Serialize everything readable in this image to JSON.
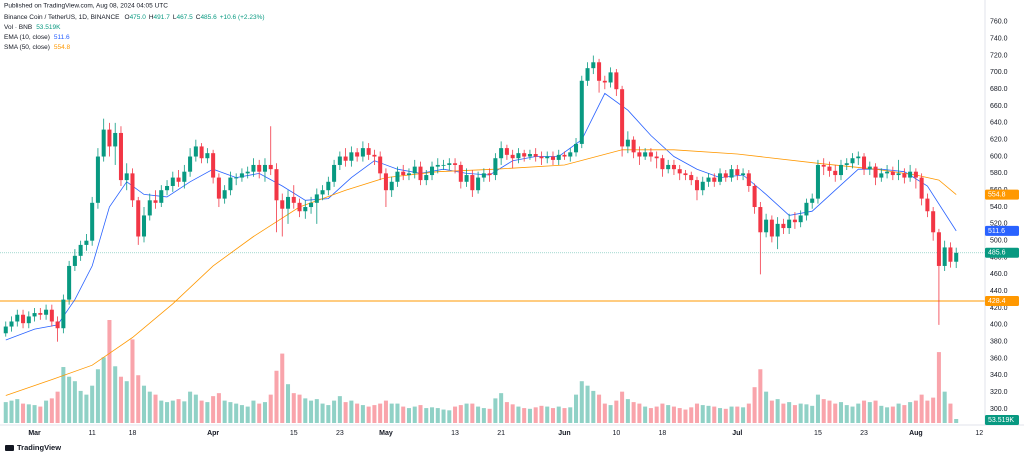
{
  "header": {
    "published": "Published on TradingView.com, Aug 08, 2024 04:05 UTC",
    "symbol": "Binance Coin / TetherUS, 1D, BINANCE",
    "ohlc": [
      {
        "key": "O",
        "value": "475.0"
      },
      {
        "key": "H",
        "value": "491.7"
      },
      {
        "key": "L",
        "value": "467.5"
      },
      {
        "key": "C",
        "value": "485.6"
      }
    ],
    "change": "+10.6 (+2.23%)",
    "volume_name": "Vol · BNB"
  },
  "footer": {
    "brand": "TradingView"
  },
  "chart_data": {
    "type": "candlestick",
    "up_color": "#089981",
    "down_color": "#f23645",
    "x": [
      "Feb 25",
      "Feb 26",
      "Feb 27",
      "Feb 28",
      "Feb 29",
      "Mar 1",
      "Mar 2",
      "Mar 3",
      "Mar 4",
      "Mar 5",
      "Mar 6",
      "Mar 7",
      "Mar 8",
      "Mar 9",
      "Mar 10",
      "Mar 11",
      "Mar 12",
      "Mar 13",
      "Mar 14",
      "Mar 15",
      "Mar 16",
      "Mar 17",
      "Mar 18",
      "Mar 19",
      "Mar 20",
      "Mar 21",
      "Mar 22",
      "Mar 23",
      "Mar 24",
      "Mar 25",
      "Mar 26",
      "Mar 27",
      "Mar 28",
      "Mar 29",
      "Mar 30",
      "Mar 31",
      "Apr 1",
      "Apr 2",
      "Apr 3",
      "Apr 4",
      "Apr 5",
      "Apr 6",
      "Apr 7",
      "Apr 8",
      "Apr 9",
      "Apr 10",
      "Apr 11",
      "Apr 12",
      "Apr 13",
      "Apr 14",
      "Apr 15",
      "Apr 16",
      "Apr 17",
      "Apr 18",
      "Apr 19",
      "Apr 20",
      "Apr 21",
      "Apr 22",
      "Apr 23",
      "Apr 24",
      "Apr 25",
      "Apr 26",
      "Apr 27",
      "Apr 28",
      "Apr 29",
      "Apr 30",
      "May 1",
      "May 2",
      "May 3",
      "May 4",
      "May 5",
      "May 6",
      "May 7",
      "May 8",
      "May 9",
      "May 10",
      "May 11",
      "May 12",
      "May 13",
      "May 14",
      "May 15",
      "May 16",
      "May 17",
      "May 18",
      "May 19",
      "May 20",
      "May 21",
      "May 22",
      "May 23",
      "May 24",
      "May 25",
      "May 26",
      "May 27",
      "May 28",
      "May 29",
      "May 30",
      "May 31",
      "Jun 1",
      "Jun 2",
      "Jun 3",
      "Jun 4",
      "Jun 5",
      "Jun 6",
      "Jun 7",
      "Jun 8",
      "Jun 9",
      "Jun 10",
      "Jun 11",
      "Jun 12",
      "Jun 13",
      "Jun 14",
      "Jun 15",
      "Jun 16",
      "Jun 17",
      "Jun 18",
      "Jun 19",
      "Jun 20",
      "Jun 21",
      "Jun 22",
      "Jun 23",
      "Jun 24",
      "Jun 25",
      "Jun 26",
      "Jun 27",
      "Jun 28",
      "Jun 29",
      "Jun 30",
      "Jul 1",
      "Jul 2",
      "Jul 3",
      "Jul 4",
      "Jul 5",
      "Jul 6",
      "Jul 7",
      "Jul 8",
      "Jul 9",
      "Jul 10",
      "Jul 11",
      "Jul 12",
      "Jul 13",
      "Jul 14",
      "Jul 15",
      "Jul 16",
      "Jul 17",
      "Jul 18",
      "Jul 19",
      "Jul 20",
      "Jul 21",
      "Jul 22",
      "Jul 23",
      "Jul 24",
      "Jul 25",
      "Jul 26",
      "Jul 27",
      "Jul 28",
      "Jul 29",
      "Jul 30",
      "Jul 31",
      "Aug 1",
      "Aug 2",
      "Aug 3",
      "Aug 4",
      "Aug 5",
      "Aug 6",
      "Aug 7",
      "Aug 8"
    ],
    "open": [
      390,
      398,
      404,
      412,
      402,
      410,
      414,
      412,
      418,
      404,
      396,
      430,
      470,
      482,
      495,
      500,
      545,
      600,
      632,
      612,
      628,
      572,
      580,
      548,
      505,
      530,
      548,
      545,
      560,
      565,
      575,
      570,
      582,
      600,
      612,
      598,
      604,
      575,
      550,
      560,
      575,
      575,
      580,
      582,
      590,
      582,
      590,
      585,
      548,
      538,
      552,
      545,
      535,
      540,
      545,
      555,
      560,
      570,
      590,
      600,
      595,
      605,
      600,
      610,
      602,
      600,
      580,
      560,
      570,
      582,
      578,
      580,
      588,
      572,
      578,
      588,
      590,
      590,
      592,
      590,
      570,
      578,
      560,
      575,
      580,
      578,
      598,
      610,
      602,
      598,
      604,
      600,
      603,
      600,
      598,
      600,
      596,
      602,
      600,
      605,
      615,
      690,
      705,
      712,
      690,
      688,
      700,
      680,
      612,
      620,
      605,
      600,
      605,
      600,
      598,
      585,
      590,
      585,
      580,
      578,
      572,
      560,
      570,
      575,
      570,
      580,
      575,
      585,
      578,
      580,
      565,
      540,
      510,
      525,
      505,
      520,
      515,
      525,
      522,
      530,
      545,
      550,
      590,
      588,
      583,
      578,
      590,
      592,
      598,
      600,
      585,
      588,
      575,
      580,
      582,
      578,
      580,
      575,
      582,
      575,
      550,
      535,
      510,
      470,
      492,
      475
    ],
    "high": [
      404,
      410,
      418,
      418,
      416,
      420,
      420,
      424,
      424,
      410,
      436,
      476,
      490,
      500,
      508,
      552,
      610,
      645,
      640,
      640,
      636,
      592,
      586,
      552,
      540,
      556,
      560,
      566,
      572,
      582,
      584,
      590,
      610,
      620,
      616,
      610,
      608,
      580,
      566,
      582,
      580,
      586,
      588,
      598,
      596,
      598,
      636,
      592,
      556,
      560,
      566,
      550,
      548,
      552,
      562,
      566,
      576,
      596,
      606,
      610,
      612,
      610,
      618,
      616,
      608,
      606,
      586,
      576,
      588,
      590,
      586,
      596,
      594,
      584,
      594,
      598,
      596,
      598,
      598,
      594,
      586,
      584,
      582,
      586,
      586,
      604,
      618,
      614,
      608,
      610,
      608,
      608,
      610,
      606,
      606,
      606,
      608,
      606,
      610,
      622,
      696,
      712,
      720,
      716,
      696,
      706,
      704,
      684,
      630,
      624,
      612,
      610,
      610,
      606,
      602,
      596,
      596,
      590,
      584,
      582,
      576,
      576,
      580,
      580,
      586,
      584,
      590,
      590,
      586,
      584,
      568,
      546,
      532,
      530,
      528,
      526,
      532,
      534,
      536,
      550,
      556,
      596,
      598,
      594,
      590,
      596,
      598,
      604,
      606,
      604,
      594,
      592,
      586,
      590,
      588,
      596,
      586,
      590,
      586,
      580,
      556,
      540,
      514,
      500,
      498,
      491.7
    ],
    "low": [
      386,
      392,
      398,
      396,
      396,
      404,
      406,
      406,
      398,
      380,
      390,
      424,
      464,
      476,
      488,
      494,
      538,
      594,
      600,
      590,
      565,
      560,
      540,
      495,
      498,
      524,
      538,
      540,
      554,
      558,
      564,
      562,
      576,
      594,
      592,
      592,
      568,
      540,
      544,
      554,
      566,
      570,
      574,
      576,
      574,
      570,
      578,
      510,
      505,
      520,
      538,
      528,
      526,
      532,
      520,
      548,
      554,
      564,
      584,
      588,
      588,
      594,
      594,
      596,
      590,
      572,
      540,
      552,
      564,
      572,
      572,
      574,
      566,
      566,
      572,
      580,
      584,
      584,
      580,
      562,
      564,
      552,
      556,
      570,
      570,
      572,
      590,
      596,
      586,
      592,
      594,
      596,
      594,
      590,
      592,
      590,
      590,
      596,
      594,
      600,
      610,
      684,
      698,
      676,
      680,
      682,
      672,
      600,
      604,
      598,
      590,
      596,
      594,
      586,
      576,
      580,
      578,
      572,
      572,
      566,
      548,
      554,
      564,
      564,
      566,
      570,
      570,
      572,
      572,
      558,
      532,
      460,
      504,
      498,
      490,
      508,
      508,
      514,
      516,
      524,
      538,
      544,
      578,
      576,
      570,
      572,
      584,
      586,
      590,
      578,
      578,
      566,
      570,
      574,
      572,
      572,
      568,
      570,
      562,
      542,
      528,
      500,
      400,
      464,
      468,
      467.5
    ],
    "close": [
      398,
      404,
      412,
      402,
      410,
      414,
      412,
      418,
      404,
      396,
      430,
      470,
      482,
      495,
      500,
      545,
      600,
      632,
      612,
      628,
      572,
      580,
      548,
      505,
      530,
      548,
      545,
      560,
      565,
      575,
      570,
      582,
      600,
      612,
      598,
      604,
      575,
      550,
      560,
      575,
      575,
      580,
      582,
      590,
      582,
      590,
      585,
      548,
      538,
      552,
      545,
      535,
      540,
      545,
      555,
      560,
      570,
      590,
      600,
      595,
      605,
      600,
      610,
      602,
      600,
      580,
      560,
      570,
      582,
      578,
      580,
      588,
      572,
      578,
      588,
      590,
      590,
      592,
      590,
      570,
      578,
      560,
      575,
      580,
      578,
      598,
      610,
      602,
      598,
      604,
      600,
      603,
      600,
      598,
      600,
      596,
      602,
      600,
      605,
      615,
      690,
      705,
      712,
      690,
      688,
      700,
      680,
      612,
      620,
      605,
      600,
      605,
      600,
      598,
      585,
      590,
      585,
      580,
      578,
      572,
      560,
      570,
      575,
      570,
      580,
      575,
      585,
      578,
      580,
      565,
      540,
      510,
      525,
      505,
      520,
      515,
      525,
      522,
      530,
      545,
      550,
      590,
      588,
      583,
      578,
      590,
      592,
      598,
      600,
      585,
      588,
      575,
      580,
      582,
      578,
      580,
      575,
      582,
      575,
      550,
      535,
      510,
      470,
      492,
      475,
      485.6
    ],
    "volume": [
      280,
      300,
      320,
      260,
      250,
      240,
      220,
      300,
      330,
      420,
      750,
      620,
      560,
      430,
      380,
      500,
      720,
      880,
      1380,
      760,
      620,
      560,
      1120,
      640,
      500,
      420,
      380,
      300,
      280,
      300,
      320,
      290,
      420,
      380,
      300,
      280,
      360,
      400,
      300,
      280,
      260,
      240,
      220,
      300,
      260,
      280,
      380,
      700,
      930,
      520,
      400,
      380,
      330,
      300,
      320,
      260,
      240,
      300,
      360,
      280,
      300,
      260,
      240,
      220,
      240,
      260,
      300,
      260,
      260,
      220,
      200,
      220,
      240,
      200,
      210,
      200,
      180,
      170,
      220,
      240,
      260,
      260,
      220,
      200,
      190,
      330,
      400,
      280,
      250,
      220,
      200,
      190,
      210,
      230,
      220,
      200,
      220,
      200,
      210,
      380,
      560,
      500,
      430,
      380,
      260,
      240,
      300,
      420,
      320,
      280,
      260,
      220,
      200,
      220,
      260,
      240,
      220,
      200,
      180,
      210,
      260,
      240,
      230,
      220,
      200,
      190,
      220,
      220,
      210,
      260,
      480,
      720,
      420,
      300,
      320,
      260,
      280,
      240,
      260,
      250,
      230,
      380,
      320,
      300,
      260,
      280,
      240,
      220,
      260,
      300,
      280,
      300,
      230,
      210,
      220,
      260,
      240,
      280,
      300,
      380,
      300,
      340,
      950,
      420,
      260,
      53.519
    ],
    "volume_tag": "53.519K",
    "lines": [
      {
        "name": "EMA (10, close)",
        "color": "#2962ff",
        "x": [
          "Feb 25",
          "Mar 1",
          "Mar 5",
          "Mar 8",
          "Mar 11",
          "Mar 14",
          "Mar 17",
          "Mar 20",
          "Mar 24",
          "Mar 28",
          "Apr 1",
          "Apr 5",
          "Apr 9",
          "Apr 13",
          "Apr 17",
          "Apr 21",
          "Apr 25",
          "Apr 29",
          "May 3",
          "May 7",
          "May 11",
          "May 15",
          "May 19",
          "May 23",
          "May 27",
          "May 31",
          "Jun 4",
          "Jun 8",
          "Jun 12",
          "Jun 16",
          "Jun 20",
          "Jun 24",
          "Jun 28",
          "Jul 2",
          "Jul 6",
          "Jul 10",
          "Jul 14",
          "Jul 18",
          "Jul 22",
          "Jul 26",
          "Jul 30",
          "Aug 3",
          "Aug 8"
        ],
        "values": [
          382,
          395,
          400,
          430,
          470,
          540,
          570,
          555,
          552,
          570,
          585,
          575,
          580,
          565,
          548,
          550,
          575,
          595,
          585,
          580,
          585,
          580,
          578,
          595,
          600,
          600,
          620,
          675,
          655,
          625,
          600,
          585,
          575,
          578,
          555,
          530,
          535,
          560,
          585,
          585,
          582,
          565,
          511.6
        ]
      },
      {
        "name": "SMA (50, close)",
        "color": "#ff9800",
        "x": [
          "Feb 25",
          "Mar 4",
          "Mar 11",
          "Mar 18",
          "Mar 25",
          "Apr 1",
          "Apr 8",
          "Apr 16",
          "Apr 24",
          "May 1",
          "May 10",
          "May 20",
          "Jun 1",
          "Jun 11",
          "Jun 20",
          "Jul 1",
          "Jul 15",
          "Jul 25",
          "Aug 1",
          "Aug 5",
          "Aug 8"
        ],
        "values": [
          316,
          335,
          352,
          385,
          425,
          470,
          505,
          540,
          560,
          575,
          582,
          585,
          590,
          608,
          608,
          603,
          592,
          585,
          578,
          572,
          554.8
        ]
      }
    ],
    "hline": 428.4,
    "hline_color": "#ff9800",
    "ylim": [
      281,
      786
    ],
    "yticks": [
      {
        "value": 300,
        "label": "300.0"
      },
      {
        "value": 320,
        "label": "320.0"
      },
      {
        "value": 340,
        "label": "340.0"
      },
      {
        "value": 360,
        "label": "360.0"
      },
      {
        "value": 380,
        "label": "380.0"
      },
      {
        "value": 400,
        "label": "400.0"
      },
      {
        "value": 420,
        "label": "420.0"
      },
      {
        "value": 440,
        "label": "440.0"
      },
      {
        "value": 460,
        "label": "460.0"
      },
      {
        "value": 480,
        "label": "480.0"
      },
      {
        "value": 500,
        "label": "500.0"
      },
      {
        "value": 520,
        "label": "520.0"
      },
      {
        "value": 540,
        "label": "540.0"
      },
      {
        "value": 560,
        "label": "560.0"
      },
      {
        "value": 580,
        "label": "580.0"
      },
      {
        "value": 600,
        "label": "600.0"
      },
      {
        "value": 620,
        "label": "620.0"
      },
      {
        "value": 640,
        "label": "640.0"
      },
      {
        "value": 660,
        "label": "660.0"
      },
      {
        "value": 680,
        "label": "680.0"
      },
      {
        "value": 700,
        "label": "700.0"
      },
      {
        "value": 720,
        "label": "720.0"
      },
      {
        "value": 740,
        "label": "740.0"
      },
      {
        "value": 760,
        "label": "760.0"
      }
    ],
    "xlim": [
      "Feb 24",
      "Aug 13"
    ],
    "xticks": [
      {
        "value": "Mar 1",
        "label": "Mar"
      },
      {
        "value": "Mar 11",
        "label": "11"
      },
      {
        "value": "Mar 18",
        "label": "18"
      },
      {
        "value": "Apr 1",
        "label": "Apr"
      },
      {
        "value": "Apr 15",
        "label": "15"
      },
      {
        "value": "Apr 23",
        "label": "23"
      },
      {
        "value": "May 1",
        "label": "May"
      },
      {
        "value": "May 13",
        "label": "13"
      },
      {
        "value": "May 21",
        "label": "21"
      },
      {
        "value": "Jun 1",
        "label": "Jun"
      },
      {
        "value": "Jun 10",
        "label": "10"
      },
      {
        "value": "Jun 18",
        "label": "18"
      },
      {
        "value": "Jul 1",
        "label": "Jul"
      },
      {
        "value": "Jul 15",
        "label": "15"
      },
      {
        "value": "Jul 23",
        "label": "23"
      },
      {
        "value": "Aug 1",
        "label": "Aug"
      },
      {
        "value": "Aug 12",
        "label": "12"
      }
    ]
  }
}
